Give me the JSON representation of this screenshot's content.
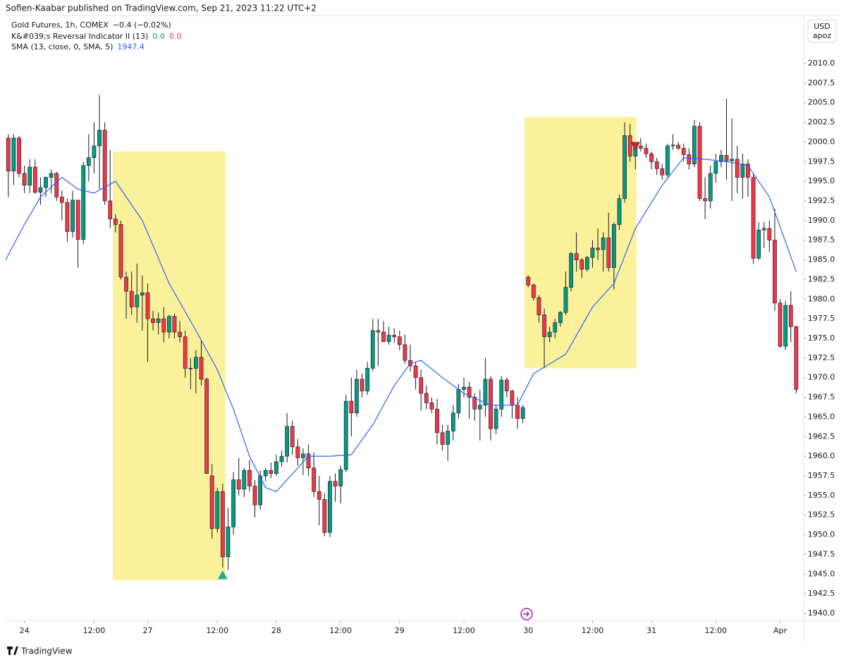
{
  "page": {
    "byline": "Sofien-Kaabar published on TradingView.com, Sep 21, 2023 11:22 UTC+2",
    "brand": "TradingView"
  },
  "chart_data": {
    "type": "candlestick",
    "legend": {
      "symbol": "Gold Futures, 1h, COMEX",
      "change": "−0.4 (−0.02%)",
      "indicator": "K&#039;s Reversal Indicator II (13)",
      "indicator_up": "0.0",
      "indicator_down": "0.0",
      "sma": "SMA (13, close, 0, SMA, 5)",
      "sma_value": "1947.4"
    },
    "currency": "USD",
    "unit": "apoz",
    "up_color": "#089981",
    "down_color": "#f23645",
    "wick_color": "#131722",
    "sma_color": "#2962ff",
    "highlight_color": "#fbf19a",
    "xlim": [
      -0.5,
      148.4
    ],
    "ylim": [
      1939.1,
      2016.1
    ],
    "xticks": [
      {
        "value": 3,
        "label": "24"
      },
      {
        "value": 16,
        "label": "12:00"
      },
      {
        "value": 26,
        "label": "27"
      },
      {
        "value": 39,
        "label": "12:00"
      },
      {
        "value": 50,
        "label": "28"
      },
      {
        "value": 62,
        "label": "12:00"
      },
      {
        "value": 73,
        "label": "29"
      },
      {
        "value": 85,
        "label": "12:00"
      },
      {
        "value": 97,
        "label": "30"
      },
      {
        "value": 109,
        "label": "12:00"
      },
      {
        "value": 120,
        "label": "31"
      },
      {
        "value": 132,
        "label": "12:00"
      },
      {
        "value": 144,
        "label": "Apr"
      }
    ],
    "yticks": [
      {
        "value": 1940,
        "label": "1940.0"
      },
      1942.5,
      {
        "value": 1945,
        "label": "1945.0"
      },
      1947.5,
      {
        "value": 1950,
        "label": "1950.0"
      },
      1952.5,
      {
        "value": 1955,
        "label": "1955.0"
      },
      1957.5,
      {
        "value": 1960,
        "label": "1960.0"
      },
      1962.5,
      {
        "value": 1965,
        "label": "1965.0"
      },
      1967.5,
      {
        "value": 1970,
        "label": "1970.0"
      },
      1972.5,
      {
        "value": 1975,
        "label": "1975.0"
      },
      1977.5,
      {
        "value": 1980,
        "label": "1980.0"
      },
      1982.5,
      {
        "value": 1985,
        "label": "1985.0"
      },
      1987.5,
      {
        "value": 1990,
        "label": "1990.0"
      },
      1992.5,
      {
        "value": 1995,
        "label": "1995.0"
      },
      1997.5,
      {
        "value": 2000,
        "label": "2000.0"
      },
      2002.5,
      {
        "value": 2005,
        "label": "2005.0"
      },
      2007.5,
      {
        "value": 2010,
        "label": "2010.0"
      }
    ],
    "open": [
      2000.5,
      1996.3,
      2000.5,
      1996,
      1994.5,
      1996.8,
      1993.6,
      1994.2,
      1995.5,
      1996,
      1993,
      1992.3,
      1988.6,
      1992.6,
      1987.6,
      1997,
      1998,
      1999.5,
      2001.5,
      1992.5,
      1990.2,
      1989.5,
      1982.8,
      1981,
      1979,
      1980.5,
      1980.8,
      1977.5,
      1977,
      1977.5,
      1975.8,
      1977.8,
      1975.8,
      1975.2,
      1971.2,
      1971.2,
      1972.6,
      1969.8,
      1957.5,
      1950.8,
      1955.5,
      1947.2,
      1951,
      1957,
      1955.8,
      1958.2,
      1956.2,
      1953.8,
      1957.5,
      1958.2,
      1957.8,
      1959.3,
      1960,
      1963.8,
      1961.2,
      1959.8,
      1960.3,
      1958.5,
      1955.5,
      1954.5,
      1950.3,
      1956.8,
      1956.2,
      1958.3,
      1967,
      1965.5,
      1969.8,
      1968.3,
      1971.2,
      1976,
      1975.8,
      1974.6,
      1975.4,
      1975.2,
      1974.2,
      1972.2,
      1971.5,
      1970,
      1968,
      1966.8,
      1966,
      1963,
      1961.5,
      1963.2,
      1965.5,
      1968.5,
      1968.8,
      1967.5,
      1966,
      1966.5,
      1969.8,
      1963.5,
      1966,
      1969.7,
      1968.3,
      1966.5,
      1964.8,
      1982.8,
      1981.8,
      1980.2,
      1978,
      1975.2,
      1975.8,
      1977,
      1978.3,
      1981.5,
      1985.8,
      1985,
      1983.8,
      1985.3,
      1986.5,
      1986.3,
      1987.8,
      1984,
      1989.5,
      1992.8,
      2000.8,
      1998.2,
      1999.5,
      1999.2,
      1998.5,
      1997.5,
      1996.6,
      1995.8,
      1999.5,
      1999.6,
      1999.2,
      1998.4,
      1997.2,
      2002,
      1992.8,
      1992.5,
      1996,
      1997.5,
      1998.3,
      1997.6,
      1997.8,
      1995.5,
      1997.2,
      1995.5,
      1985.2,
      1988.8,
      1989,
      1987.5,
      1979.5,
      1974,
      1979.2,
      1976.5
    ],
    "high": [
      2001,
      2001,
      2000.8,
      1997,
      1997.8,
      1997.8,
      1995.5,
      1995.6,
      1996.5,
      1996.2,
      1993.8,
      1992.8,
      1993.8,
      1992.6,
      1997.5,
      2001,
      2002.5,
      2006,
      2002.5,
      1999,
      1990.8,
      1990,
      1983.5,
      1983.5,
      1984.5,
      1983,
      1982,
      1978.5,
      1978.3,
      1979,
      1978,
      1978.2,
      1977.2,
      1976,
      1972.5,
      1973.5,
      1974.8,
      1970,
      1959,
      1956,
      1956.5,
      1953.4,
      1958,
      1959.8,
      1958.5,
      1959.5,
      1957,
      1958.2,
      1958.5,
      1959.2,
      1960.2,
      1960.7,
      1965.5,
      1964.5,
      1962.2,
      1961,
      1961.5,
      1960.5,
      1957.5,
      1955.3,
      1957.5,
      1957.8,
      1958.8,
      1967.8,
      1970,
      1971,
      1970.5,
      1972,
      1977.5,
      1977.5,
      1977.2,
      1976.5,
      1976.3,
      1976,
      1975.5,
      1974.2,
      1972,
      1971,
      1969,
      1967.5,
      1967.3,
      1964,
      1964,
      1966.5,
      1969.2,
      1970,
      1969.5,
      1968,
      1968.5,
      1972.5,
      1970.2,
      1966.5,
      1970.2,
      1970,
      1968.5,
      1967.5,
      1966.5,
      1983,
      1982,
      1980.5,
      1978.8,
      1976.5,
      1977.5,
      1978.5,
      1983.5,
      1986,
      1988.5,
      1985.2,
      1985.5,
      1987.5,
      1989,
      1988.5,
      1991,
      1989.8,
      1993.3,
      2002.5,
      2002.3,
      2000,
      2000.5,
      1999.8,
      1998.8,
      1998,
      1997.2,
      1999.8,
      2001,
      2000,
      1999.8,
      1999.2,
      2002.8,
      2002.5,
      1995.5,
      1997,
      1998.5,
      1999,
      2005.5,
      2003,
      1999.5,
      1998.5,
      1997.8,
      1996,
      1989.8,
      1989.8,
      1990,
      1991.5,
      1980,
      1979.8,
      1981,
      1976.6
    ],
    "low": [
      1993,
      1994.5,
      1995.5,
      1993.5,
      1993.5,
      1993.4,
      1992,
      1993,
      1993.5,
      1992.5,
      1990,
      1987.3,
      1987.8,
      1984,
      1987,
      1995,
      1996,
      1994,
      1992,
      1989,
      1988.5,
      1982.5,
      1977.5,
      1978,
      1977,
      1976,
      1972,
      1976,
      1975.5,
      1974.5,
      1975,
      1975,
      1974.5,
      1970,
      1968.5,
      1968,
      1969,
      1957.8,
      1949.5,
      1950.3,
      1945.8,
      1945.5,
      1950,
      1955,
      1954.8,
      1955.5,
      1952.2,
      1953.2,
      1956.8,
      1957.2,
      1957.5,
      1958.7,
      1959.2,
      1960.2,
      1958.8,
      1957.6,
      1957.5,
      1954.8,
      1951.2,
      1949.8,
      1949.7,
      1954.2,
      1954,
      1958,
      1962.5,
      1965,
      1967.5,
      1967.8,
      1970.8,
      1971.5,
      1974.5,
      1974.2,
      1974.5,
      1973.5,
      1971.8,
      1970.8,
      1968.5,
      1965.8,
      1966,
      1965.5,
      1961.5,
      1960.7,
      1959.4,
      1962,
      1964.8,
      1967.5,
      1964.8,
      1964.5,
      1962,
      1965,
      1962,
      1962.8,
      1965,
      1967.5,
      1964.8,
      1963.5,
      1964.2,
      1981.5,
      1979.8,
      1977,
      1971.2,
      1974.5,
      1975,
      1976.5,
      1978,
      1981,
      1983.5,
      1982.7,
      1983.5,
      1984,
      1985,
      1983.5,
      1983.5,
      1981.2,
      1988.8,
      1992.3,
      1997.5,
      1996.5,
      1998.8,
      1998,
      1996.5,
      1995.8,
      1995.2,
      1995.5,
      1999,
      1999,
      1997.5,
      1996.5,
      1996.8,
      1992.5,
      1990.2,
      1991.5,
      1994.8,
      1996.8,
      1995.2,
      1992.5,
      1993.5,
      1992.8,
      1993,
      1984.5,
      1985,
      1986.5,
      1986,
      1978.5,
      1973.8,
      1973.5,
      1974.5,
      1968
    ],
    "close": [
      1996.3,
      2000.5,
      1996,
      1994.5,
      1996.8,
      1993.6,
      1994.2,
      1995.5,
      1996,
      1993,
      1992.3,
      1988.6,
      1992.6,
      1987.6,
      1997,
      1998,
      1999.5,
      2001.5,
      1992.5,
      1990.2,
      1989.5,
      1982.8,
      1981,
      1979,
      1980.5,
      1980.8,
      1977.5,
      1977,
      1977.5,
      1975.8,
      1977.8,
      1975.8,
      1975.2,
      1971.2,
      1971.2,
      1972.6,
      1969.8,
      1957.8,
      1950.8,
      1955.5,
      1947.2,
      1951,
      1957,
      1955.8,
      1958.2,
      1956.2,
      1953.8,
      1957.5,
      1958.2,
      1957.8,
      1959.3,
      1960,
      1963.8,
      1961.2,
      1959.8,
      1960.3,
      1958.5,
      1955.5,
      1954.5,
      1950.3,
      1956.8,
      1956.2,
      1958.3,
      1967,
      1965.5,
      1969.8,
      1968.3,
      1971.2,
      1976,
      1975.8,
      1974.6,
      1975.4,
      1975.2,
      1974.2,
      1972.2,
      1971.5,
      1970,
      1968,
      1966.8,
      1966,
      1963,
      1961.5,
      1963.2,
      1965.5,
      1968.5,
      1968.8,
      1967.5,
      1966,
      1966.5,
      1969.8,
      1963.5,
      1966,
      1969.7,
      1968.3,
      1966.5,
      1964.8,
      1966.2,
      1981.8,
      1980.2,
      1978,
      1975.2,
      1975.8,
      1977,
      1978.3,
      1981.5,
      1985.8,
      1985,
      1983.8,
      1985.3,
      1986.5,
      1986.3,
      1987.8,
      1984,
      1989.5,
      1992.8,
      2000.8,
      1998.2,
      1999.5,
      1999.2,
      1998.5,
      1997.5,
      1996.6,
      1995.8,
      1999.5,
      1999.6,
      1999.2,
      1998.4,
      1997.2,
      2002,
      1992.8,
      1992.5,
      1996,
      1997.5,
      1998.3,
      1997.6,
      1997.8,
      1995.5,
      1997.2,
      1995.5,
      1985.2,
      1988.8,
      1989,
      1987.5,
      1979.5,
      1974,
      1979.2,
      1976.5,
      1968.5
    ],
    "sma_line": {
      "x": [
        -0.5,
        3,
        6,
        10,
        13,
        16,
        20,
        25,
        30,
        35,
        39,
        42,
        45,
        48,
        50,
        52,
        56,
        60,
        64,
        68,
        72,
        75,
        77,
        81,
        85,
        90,
        95,
        98,
        104,
        109,
        113,
        117,
        122,
        126,
        130,
        134,
        138,
        142,
        147
      ],
      "values": [
        1985,
        1989.5,
        1993,
        1995.5,
        1994,
        1993.5,
        1995,
        1990,
        1982,
        1976,
        1971,
        1966,
        1960,
        1956,
        1955.5,
        1957,
        1960,
        1960,
        1960.2,
        1964,
        1969,
        1971.8,
        1972.2,
        1970,
        1968,
        1966.5,
        1966.5,
        1970.5,
        1973,
        1979,
        1982,
        1989,
        1994.5,
        1998,
        1997.8,
        1997.5,
        1997,
        1993,
        1983.5
      ]
    },
    "highlights": [
      {
        "x": [
          19.5,
          40.5
        ],
        "y": [
          1944.2,
          1998.8
        ]
      },
      {
        "x": [
          96.3,
          117.2
        ],
        "y": [
          1971.2,
          2003.2
        ]
      }
    ],
    "signals": [
      {
        "x": 40,
        "direction": "up"
      },
      {
        "x": 117,
        "direction": "down"
      }
    ]
  }
}
